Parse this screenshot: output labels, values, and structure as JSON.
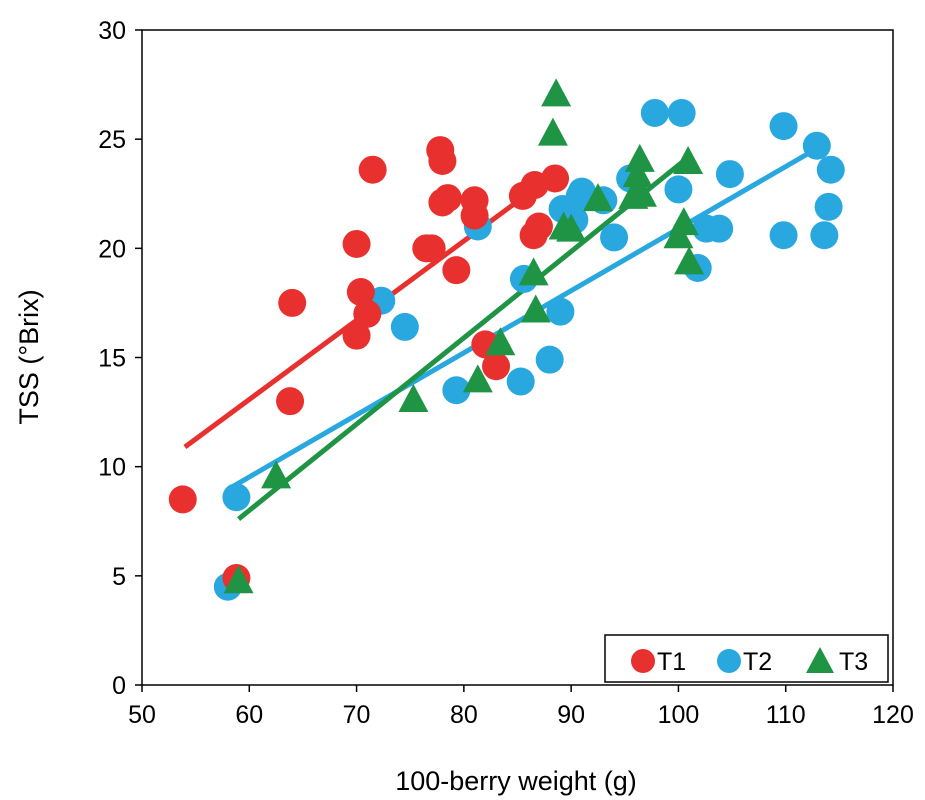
{
  "chart_data": {
    "type": "scatter",
    "xlabel": "100-berry weight (g)",
    "ylabel": "TSS (°Brix)",
    "xlim": [
      50,
      120
    ],
    "ylim": [
      0,
      30
    ],
    "xticks": [
      50,
      60,
      70,
      80,
      90,
      100,
      110,
      120
    ],
    "yticks": [
      0,
      5,
      10,
      15,
      20,
      25,
      30
    ],
    "xtick_labels": [
      "50",
      "60",
      "70",
      "80",
      "90",
      "100",
      "110",
      "120"
    ],
    "ytick_labels": [
      "0",
      "5",
      "10",
      "15",
      "20",
      "25",
      "30"
    ],
    "grid": false,
    "legend_position": "bottom-right",
    "series": [
      {
        "name": "T1",
        "marker": "circle",
        "color": "#e8312f",
        "points": [
          [
            53.8,
            8.5
          ],
          [
            58.8,
            4.9
          ],
          [
            63.8,
            13.0
          ],
          [
            64.0,
            17.5
          ],
          [
            70.0,
            16.0
          ],
          [
            70.0,
            20.2
          ],
          [
            70.4,
            18.0
          ],
          [
            71.0,
            17.0
          ],
          [
            71.5,
            23.6
          ],
          [
            76.5,
            20.0
          ],
          [
            77.0,
            20.0
          ],
          [
            77.8,
            24.5
          ],
          [
            78.0,
            24.0
          ],
          [
            78.0,
            22.1
          ],
          [
            78.5,
            22.3
          ],
          [
            79.3,
            19.0
          ],
          [
            81.0,
            22.2
          ],
          [
            81.0,
            21.5
          ],
          [
            82.0,
            15.6
          ],
          [
            83.0,
            14.6
          ],
          [
            85.5,
            22.4
          ],
          [
            86.5,
            20.6
          ],
          [
            86.6,
            22.9
          ],
          [
            87.0,
            21.0
          ],
          [
            88.5,
            23.2
          ]
        ],
        "trend": {
          "x_start": 54,
          "x_end": 89,
          "y_start": 10.9,
          "y_end": 23.6
        }
      },
      {
        "name": "T2",
        "marker": "circle",
        "color": "#29a8e0",
        "points": [
          [
            58.0,
            4.5
          ],
          [
            58.8,
            8.6
          ],
          [
            72.3,
            17.6
          ],
          [
            74.5,
            16.4
          ],
          [
            79.3,
            13.5
          ],
          [
            81.3,
            21.0
          ],
          [
            85.3,
            13.9
          ],
          [
            85.6,
            18.6
          ],
          [
            88.0,
            14.9
          ],
          [
            89.0,
            17.1
          ],
          [
            89.2,
            21.8
          ],
          [
            90.3,
            21.3
          ],
          [
            90.8,
            22.4
          ],
          [
            91.0,
            22.6
          ],
          [
            93.0,
            22.2
          ],
          [
            94.0,
            20.5
          ],
          [
            95.5,
            23.2
          ],
          [
            97.8,
            26.2
          ],
          [
            100.3,
            26.2
          ],
          [
            100.0,
            22.7
          ],
          [
            101.8,
            19.1
          ],
          [
            102.6,
            20.9
          ],
          [
            103.8,
            20.9
          ],
          [
            104.8,
            23.4
          ],
          [
            109.8,
            25.6
          ],
          [
            109.8,
            20.6
          ],
          [
            112.9,
            24.7
          ],
          [
            113.6,
            20.6
          ],
          [
            114.0,
            21.9
          ],
          [
            114.2,
            23.6
          ]
        ],
        "trend": {
          "x_start": 58.5,
          "x_end": 113,
          "y_start": 9.1,
          "y_end": 24.6
        }
      },
      {
        "name": "T3",
        "marker": "triangle",
        "color": "#1f9444",
        "points": [
          [
            59.0,
            4.8
          ],
          [
            62.5,
            9.6
          ],
          [
            75.3,
            13.1
          ],
          [
            81.3,
            14.0
          ],
          [
            83.4,
            15.7
          ],
          [
            86.5,
            18.9
          ],
          [
            86.7,
            17.2
          ],
          [
            88.3,
            25.3
          ],
          [
            88.6,
            27.1
          ],
          [
            89.3,
            21.0
          ],
          [
            90.0,
            20.9
          ],
          [
            92.5,
            22.3
          ],
          [
            95.8,
            22.4
          ],
          [
            96.2,
            23.4
          ],
          [
            96.4,
            24.1
          ],
          [
            96.6,
            22.5
          ],
          [
            100.0,
            20.6
          ],
          [
            100.5,
            21.2
          ],
          [
            100.9,
            24.0
          ],
          [
            101.0,
            19.4
          ]
        ],
        "trend": {
          "x_start": 59,
          "x_end": 101,
          "y_start": 7.6,
          "y_end": 24.2
        }
      }
    ]
  }
}
